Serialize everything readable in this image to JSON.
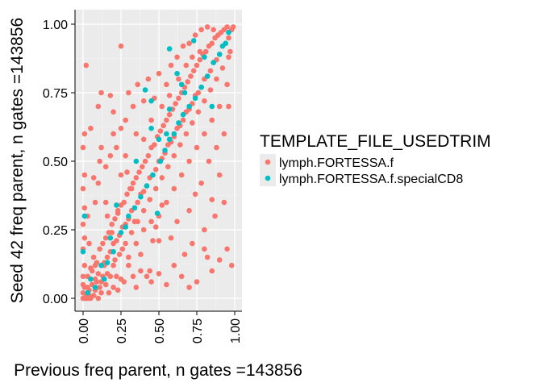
{
  "chart_data": {
    "type": "scatter",
    "title": "",
    "xlabel": "Previous freq parent, n gates =143856",
    "ylabel": "Seed 42 freq parent, n gates =143856",
    "xlim": [
      0,
      1
    ],
    "ylim": [
      0,
      1
    ],
    "x_ticks": [
      "0.00",
      "0.25",
      "0.50",
      "0.75",
      "1.00"
    ],
    "y_ticks": [
      "0.00",
      "0.25",
      "0.50",
      "0.75",
      "1.00"
    ],
    "grid": true,
    "legend": {
      "title": "TEMPLATE_FILE_USEDTRIM",
      "placement": "right"
    },
    "series": [
      {
        "name": "lymph.FORTESSA.f",
        "color": "#F8766D",
        "points": [
          [
            0.02,
            0.01
          ],
          [
            0.04,
            0.03
          ],
          [
            0.06,
            0.05
          ],
          [
            0.08,
            0.07
          ],
          [
            0.1,
            0.09
          ],
          [
            0.12,
            0.12
          ],
          [
            0.14,
            0.13
          ],
          [
            0.16,
            0.15
          ],
          [
            0.18,
            0.17
          ],
          [
            0.2,
            0.2
          ],
          [
            0.22,
            0.21
          ],
          [
            0.24,
            0.23
          ],
          [
            0.26,
            0.26
          ],
          [
            0.28,
            0.27
          ],
          [
            0.3,
            0.29
          ],
          [
            0.32,
            0.32
          ],
          [
            0.34,
            0.33
          ],
          [
            0.36,
            0.35
          ],
          [
            0.38,
            0.38
          ],
          [
            0.4,
            0.39
          ],
          [
            0.42,
            0.41
          ],
          [
            0.44,
            0.44
          ],
          [
            0.46,
            0.45
          ],
          [
            0.48,
            0.47
          ],
          [
            0.5,
            0.5
          ],
          [
            0.52,
            0.51
          ],
          [
            0.54,
            0.53
          ],
          [
            0.56,
            0.56
          ],
          [
            0.58,
            0.57
          ],
          [
            0.6,
            0.59
          ],
          [
            0.62,
            0.62
          ],
          [
            0.64,
            0.63
          ],
          [
            0.66,
            0.65
          ],
          [
            0.68,
            0.68
          ],
          [
            0.7,
            0.69
          ],
          [
            0.72,
            0.71
          ],
          [
            0.74,
            0.74
          ],
          [
            0.76,
            0.75
          ],
          [
            0.78,
            0.77
          ],
          [
            0.8,
            0.8
          ],
          [
            0.82,
            0.81
          ],
          [
            0.84,
            0.83
          ],
          [
            0.86,
            0.86
          ],
          [
            0.88,
            0.87
          ],
          [
            0.9,
            0.89
          ],
          [
            0.92,
            0.92
          ],
          [
            0.94,
            0.93
          ],
          [
            0.96,
            0.95
          ],
          [
            0.98,
            0.98
          ],
          [
            0.99,
            0.99
          ],
          [
            0.01,
            0.04
          ],
          [
            0.03,
            0.08
          ],
          [
            0.05,
            0.11
          ],
          [
            0.07,
            0.15
          ],
          [
            0.09,
            0.13
          ],
          [
            0.11,
            0.18
          ],
          [
            0.13,
            0.2
          ],
          [
            0.15,
            0.22
          ],
          [
            0.17,
            0.24
          ],
          [
            0.19,
            0.27
          ],
          [
            0.21,
            0.29
          ],
          [
            0.23,
            0.31
          ],
          [
            0.25,
            0.34
          ],
          [
            0.27,
            0.35
          ],
          [
            0.29,
            0.38
          ],
          [
            0.31,
            0.4
          ],
          [
            0.33,
            0.42
          ],
          [
            0.35,
            0.44
          ],
          [
            0.37,
            0.46
          ],
          [
            0.39,
            0.48
          ],
          [
            0.41,
            0.5
          ],
          [
            0.43,
            0.52
          ],
          [
            0.45,
            0.55
          ],
          [
            0.47,
            0.56
          ],
          [
            0.49,
            0.59
          ],
          [
            0.51,
            0.61
          ],
          [
            0.53,
            0.63
          ],
          [
            0.55,
            0.65
          ],
          [
            0.57,
            0.67
          ],
          [
            0.59,
            0.69
          ],
          [
            0.61,
            0.71
          ],
          [
            0.63,
            0.73
          ],
          [
            0.65,
            0.75
          ],
          [
            0.67,
            0.77
          ],
          [
            0.69,
            0.79
          ],
          [
            0.71,
            0.81
          ],
          [
            0.73,
            0.83
          ],
          [
            0.75,
            0.85
          ],
          [
            0.77,
            0.87
          ],
          [
            0.79,
            0.89
          ],
          [
            0.81,
            0.9
          ],
          [
            0.83,
            0.92
          ],
          [
            0.85,
            0.93
          ],
          [
            0.87,
            0.95
          ],
          [
            0.89,
            0.96
          ],
          [
            0.91,
            0.97
          ],
          [
            0.93,
            0.98
          ],
          [
            0.95,
            0.99
          ],
          [
            0.04,
            0.01
          ],
          [
            0.08,
            0.03
          ],
          [
            0.12,
            0.06
          ],
          [
            0.16,
            0.09
          ],
          [
            0.2,
            0.12
          ],
          [
            0.24,
            0.16
          ],
          [
            0.28,
            0.2
          ],
          [
            0.32,
            0.24
          ],
          [
            0.36,
            0.28
          ],
          [
            0.4,
            0.32
          ],
          [
            0.44,
            0.36
          ],
          [
            0.48,
            0.4
          ],
          [
            0.52,
            0.44
          ],
          [
            0.56,
            0.48
          ],
          [
            0.6,
            0.52
          ],
          [
            0.64,
            0.56
          ],
          [
            0.68,
            0.6
          ],
          [
            0.72,
            0.64
          ],
          [
            0.76,
            0.68
          ],
          [
            0.8,
            0.72
          ],
          [
            0.84,
            0.76
          ],
          [
            0.88,
            0.8
          ],
          [
            0.92,
            0.84
          ],
          [
            0.96,
            0.88
          ],
          [
            0.0,
            0.0
          ],
          [
            0.01,
            0.0
          ],
          [
            0.02,
            0.0
          ],
          [
            0.03,
            0.0
          ],
          [
            0.05,
            0.0
          ],
          [
            0.07,
            0.01
          ],
          [
            0.1,
            0.0
          ],
          [
            0.0,
            0.02
          ],
          [
            0.0,
            0.05
          ],
          [
            0.0,
            0.08
          ],
          [
            0.01,
            0.12
          ],
          [
            0.0,
            0.18
          ],
          [
            0.01,
            0.22
          ],
          [
            0.0,
            0.27
          ],
          [
            0.01,
            0.33
          ],
          [
            0.0,
            0.4
          ],
          [
            0.01,
            0.45
          ],
          [
            0.0,
            0.55
          ],
          [
            0.02,
            0.85
          ],
          [
            0.01,
            0.6
          ],
          [
            0.03,
            0.3
          ],
          [
            0.04,
            0.2
          ],
          [
            0.03,
            0.04
          ],
          [
            0.06,
            0.1
          ],
          [
            0.09,
            0.06
          ],
          [
            0.11,
            0.04
          ],
          [
            0.13,
            0.08
          ],
          [
            0.15,
            0.05
          ],
          [
            0.12,
            0.02
          ],
          [
            0.08,
            0.12
          ],
          [
            0.15,
            0.35
          ],
          [
            0.14,
            0.12
          ],
          [
            0.18,
            0.08
          ],
          [
            0.2,
            0.04
          ],
          [
            0.22,
            0.08
          ],
          [
            0.25,
            0.07
          ],
          [
            0.17,
            0.02
          ],
          [
            0.23,
            0.03
          ],
          [
            0.27,
            0.06
          ],
          [
            0.3,
            0.12
          ],
          [
            0.33,
            0.08
          ],
          [
            0.35,
            0.04
          ],
          [
            0.38,
            0.1
          ],
          [
            0.42,
            0.08
          ],
          [
            0.45,
            0.06
          ],
          [
            0.5,
            0.09
          ],
          [
            0.55,
            0.05
          ],
          [
            0.6,
            0.12
          ],
          [
            0.65,
            0.08
          ],
          [
            0.7,
            0.04
          ],
          [
            0.75,
            0.06
          ],
          [
            0.85,
            0.1
          ],
          [
            0.9,
            0.14
          ],
          [
            0.72,
            0.2
          ],
          [
            0.8,
            0.25
          ],
          [
            0.87,
            0.3
          ],
          [
            0.93,
            0.35
          ],
          [
            0.95,
            0.18
          ],
          [
            0.98,
            0.12
          ],
          [
            0.82,
            0.15
          ],
          [
            0.67,
            0.16
          ],
          [
            0.08,
            0.35
          ],
          [
            0.1,
            0.42
          ],
          [
            0.11,
            0.5
          ],
          [
            0.07,
            0.44
          ],
          [
            0.12,
            0.55
          ],
          [
            0.15,
            0.48
          ],
          [
            0.18,
            0.52
          ],
          [
            0.2,
            0.6
          ],
          [
            0.22,
            0.55
          ],
          [
            0.25,
            0.62
          ],
          [
            0.28,
            0.65
          ],
          [
            0.3,
            0.75
          ],
          [
            0.33,
            0.7
          ],
          [
            0.35,
            0.6
          ],
          [
            0.28,
            0.52
          ],
          [
            0.25,
            0.45
          ],
          [
            0.36,
            0.78
          ],
          [
            0.4,
            0.72
          ],
          [
            0.43,
            0.8
          ],
          [
            0.47,
            0.73
          ],
          [
            0.5,
            0.82
          ],
          [
            0.55,
            0.78
          ],
          [
            0.58,
            0.85
          ],
          [
            0.62,
            0.88
          ],
          [
            0.66,
            0.92
          ],
          [
            0.7,
            0.93
          ],
          [
            0.74,
            0.96
          ],
          [
            0.78,
            0.98
          ],
          [
            0.82,
            0.99
          ],
          [
            0.86,
            0.98
          ],
          [
            0.12,
            0.75
          ],
          [
            0.18,
            0.74
          ],
          [
            0.25,
            0.92
          ],
          [
            0.05,
            0.62
          ],
          [
            0.1,
            0.7
          ],
          [
            0.2,
            0.68
          ],
          [
            0.23,
            0.32
          ],
          [
            0.16,
            0.3
          ],
          [
            0.4,
            0.58
          ],
          [
            0.45,
            0.65
          ],
          [
            0.52,
            0.7
          ],
          [
            0.57,
            0.74
          ],
          [
            0.63,
            0.8
          ],
          [
            0.68,
            0.85
          ],
          [
            0.72,
            0.88
          ],
          [
            0.77,
            0.9
          ],
          [
            0.3,
            0.15
          ],
          [
            0.35,
            0.2
          ],
          [
            0.4,
            0.25
          ],
          [
            0.45,
            0.28
          ],
          [
            0.5,
            0.3
          ],
          [
            0.55,
            0.35
          ],
          [
            0.6,
            0.4
          ],
          [
            0.65,
            0.45
          ],
          [
            0.7,
            0.5
          ],
          [
            0.75,
            0.55
          ],
          [
            0.8,
            0.6
          ],
          [
            0.85,
            0.65
          ],
          [
            0.9,
            0.7
          ],
          [
            0.95,
            0.78
          ],
          [
            0.97,
            0.9
          ],
          [
            0.46,
            0.21
          ],
          [
            0.5,
            0.21
          ],
          [
            0.48,
            0.26
          ],
          [
            0.52,
            0.34
          ],
          [
            0.58,
            0.22
          ],
          [
            0.62,
            0.28
          ],
          [
            0.7,
            0.32
          ],
          [
            0.78,
            0.42
          ],
          [
            0.74,
            0.38
          ],
          [
            0.83,
            0.5
          ],
          [
            0.88,
            0.55
          ],
          [
            0.9,
            0.45
          ],
          [
            0.93,
            0.6
          ],
          [
            0.96,
            0.7
          ],
          [
            0.85,
            0.36
          ],
          [
            0.8,
            0.18
          ],
          [
            0.44,
            0.1
          ],
          [
            0.38,
            0.16
          ],
          [
            0.34,
            0.28
          ],
          [
            0.26,
            0.18
          ],
          [
            0.21,
            0.14
          ],
          [
            0.19,
            0.24
          ],
          [
            0.32,
            0.4
          ],
          [
            0.29,
            0.46
          ]
        ]
      },
      {
        "name": "lymph.FORTESSA.f.specialCD8",
        "color": "#00BFC4",
        "points": [
          [
            0.01,
            0.3
          ],
          [
            0.0,
            0.17
          ],
          [
            0.05,
            0.07
          ],
          [
            0.08,
            0.04
          ],
          [
            0.14,
            0.07
          ],
          [
            0.16,
            0.13
          ],
          [
            0.2,
            0.17
          ],
          [
            0.28,
            0.26
          ],
          [
            0.34,
            0.33
          ],
          [
            0.38,
            0.37
          ],
          [
            0.42,
            0.41
          ],
          [
            0.46,
            0.45
          ],
          [
            0.51,
            0.5
          ],
          [
            0.49,
            0.31
          ],
          [
            0.45,
            0.62
          ],
          [
            0.5,
            0.58
          ],
          [
            0.54,
            0.54
          ],
          [
            0.57,
            0.58
          ],
          [
            0.6,
            0.6
          ],
          [
            0.63,
            0.64
          ],
          [
            0.66,
            0.67
          ],
          [
            0.7,
            0.7
          ],
          [
            0.74,
            0.73
          ],
          [
            0.78,
            0.77
          ],
          [
            0.82,
            0.81
          ],
          [
            0.86,
            0.86
          ],
          [
            0.9,
            0.89
          ],
          [
            0.94,
            0.93
          ],
          [
            0.73,
            0.94
          ],
          [
            0.8,
            0.88
          ],
          [
            0.57,
            0.91
          ],
          [
            0.62,
            0.82
          ],
          [
            0.41,
            0.76
          ],
          [
            0.45,
            0.72
          ],
          [
            0.57,
            0.69
          ],
          [
            0.65,
            0.78
          ],
          [
            0.85,
            0.7
          ],
          [
            0.92,
            0.92
          ],
          [
            0.96,
            0.97
          ],
          [
            0.25,
            0.24
          ],
          [
            0.12,
            0.12
          ],
          [
            0.3,
            0.3
          ],
          [
            0.22,
            0.34
          ],
          [
            0.35,
            0.5
          ],
          [
            0.18,
            0.22
          ],
          [
            0.03,
            0.02
          ],
          [
            0.55,
            0.6
          ],
          [
            0.67,
            0.75
          ]
        ]
      }
    ]
  }
}
